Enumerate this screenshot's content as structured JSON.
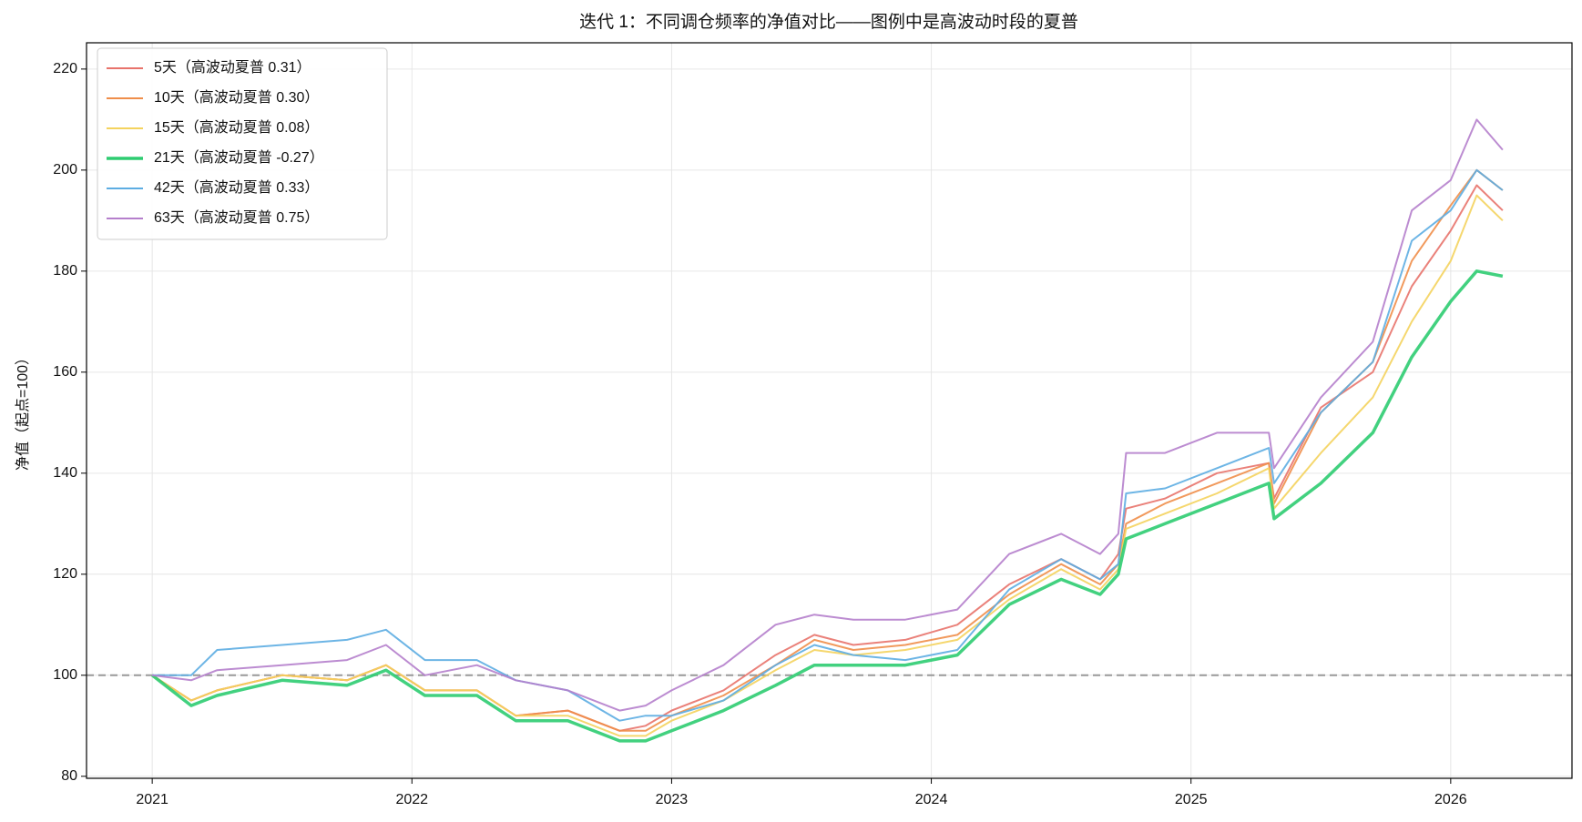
{
  "chart_data": {
    "type": "line",
    "title": "迭代 1：不同调仓频率的净值对比——图例中是高波动时段的夏普",
    "y_label": "净值（起点=100）",
    "x": [
      2021.0,
      2021.15,
      2021.25,
      2021.5,
      2021.75,
      2021.9,
      2022.05,
      2022.25,
      2022.4,
      2022.6,
      2022.8,
      2022.9,
      2023.0,
      2023.2,
      2023.4,
      2023.55,
      2023.7,
      2023.9,
      2024.1,
      2024.3,
      2024.5,
      2024.65,
      2024.72,
      2024.75,
      2024.9,
      2025.1,
      2025.3,
      2025.32,
      2025.5,
      2025.7,
      2025.85,
      2026.0,
      2026.1,
      2026.2
    ],
    "series": [
      {
        "name": "5天（高波动夏普 0.31）",
        "color": "#e8736b",
        "linewidth": 2,
        "values": [
          100,
          95,
          97,
          100,
          99,
          102,
          97,
          97,
          92,
          93,
          89,
          90,
          93,
          97,
          104,
          108,
          106,
          107,
          110,
          118,
          123,
          119,
          124,
          133,
          135,
          140,
          142,
          135,
          153,
          160,
          177,
          188,
          197,
          192
        ]
      },
      {
        "name": "10天（高波动夏普 0.30）",
        "color": "#ef8e4a",
        "linewidth": 2,
        "values": [
          100,
          95,
          97,
          100,
          99,
          102,
          97,
          97,
          92,
          93,
          89,
          89,
          92,
          96,
          102,
          107,
          105,
          106,
          108,
          116,
          122,
          118,
          122,
          130,
          134,
          138,
          142,
          134,
          152,
          162,
          182,
          193,
          200,
          196
        ]
      },
      {
        "name": "15天（高波动夏普 0.08）",
        "color": "#f4d35e",
        "linewidth": 2,
        "values": [
          100,
          95,
          97,
          100,
          99,
          102,
          97,
          97,
          92,
          92,
          88,
          88,
          91,
          95,
          101,
          105,
          104,
          105,
          107,
          115,
          121,
          117,
          121,
          129,
          132,
          136,
          141,
          133,
          144,
          155,
          170,
          182,
          195,
          190
        ]
      },
      {
        "name": "21天（高波动夏普 -0.27）",
        "color": "#2ecc71",
        "linewidth": 3.5,
        "values": [
          100,
          94,
          96,
          99,
          98,
          101,
          96,
          96,
          91,
          91,
          87,
          87,
          89,
          93,
          98,
          102,
          102,
          102,
          104,
          114,
          119,
          116,
          120,
          127,
          130,
          134,
          138,
          131,
          138,
          148,
          163,
          174,
          180,
          179
        ]
      },
      {
        "name": "42天（高波动夏普 0.33）",
        "color": "#5dade2",
        "linewidth": 2,
        "values": [
          100,
          100,
          105,
          106,
          107,
          109,
          103,
          103,
          99,
          97,
          91,
          92,
          92,
          95,
          102,
          106,
          104,
          103,
          105,
          117,
          123,
          119,
          122,
          136,
          137,
          141,
          145,
          138,
          152,
          162,
          186,
          192,
          200,
          196
        ]
      },
      {
        "name": "63天（高波动夏普 0.75）",
        "color": "#b57fcc",
        "linewidth": 2,
        "values": [
          100,
          99,
          101,
          102,
          103,
          106,
          100,
          102,
          99,
          97,
          93,
          94,
          97,
          102,
          110,
          112,
          111,
          111,
          113,
          124,
          128,
          124,
          128,
          144,
          144,
          148,
          148,
          141,
          155,
          166,
          192,
          198,
          210,
          204
        ]
      }
    ],
    "xlim": [
      2020.747,
      2026.467
    ],
    "xticks": [
      2021,
      2022,
      2023,
      2024,
      2025,
      2026
    ],
    "ylim": [
      79.6,
      225.2
    ],
    "yticks": [
      80,
      100,
      120,
      140,
      160,
      180,
      200,
      220
    ],
    "hline": 100,
    "grid": true,
    "legend": "upper left"
  }
}
